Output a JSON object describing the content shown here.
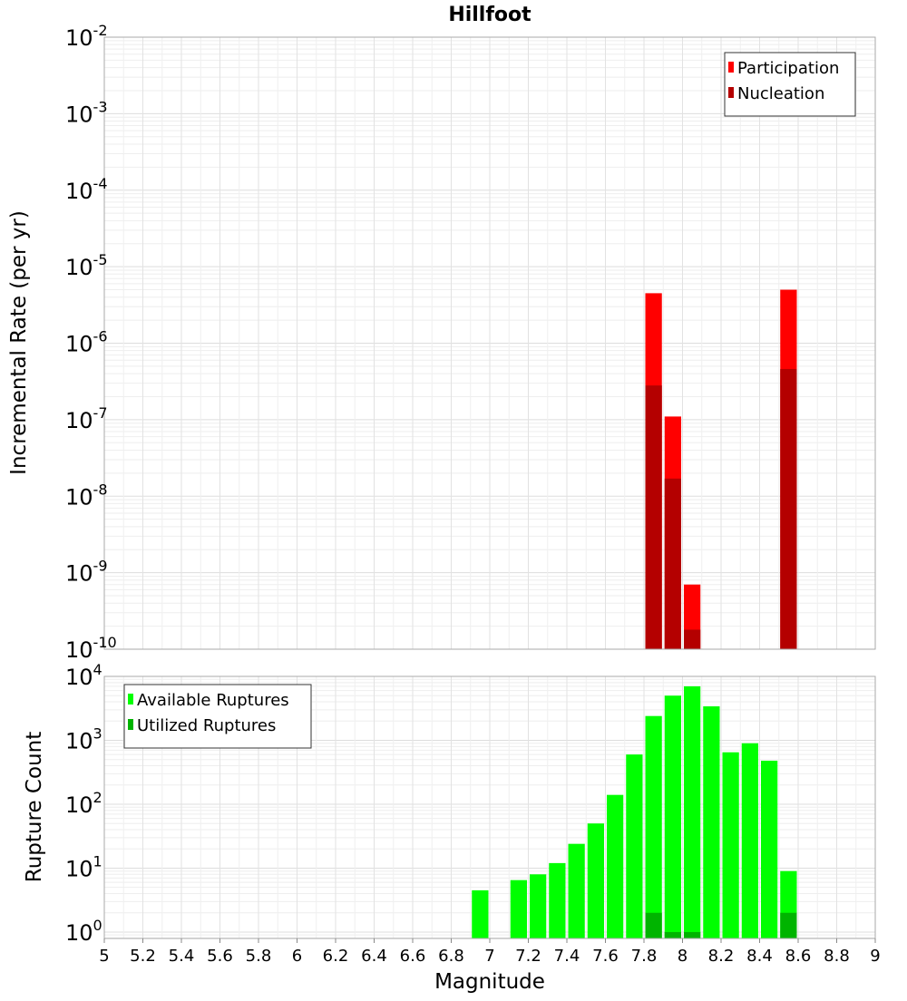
{
  "chart_data": [
    {
      "id": "rates",
      "type": "bar",
      "title": "Hillfoot",
      "xlabel": "",
      "ylabel": "Incremental Rate (per yr)",
      "yscale": "log",
      "ylim_exp": [
        -10,
        -2
      ],
      "xlim": [
        5,
        9
      ],
      "bar_width": 0.1,
      "legend_position": "top-right",
      "series": [
        {
          "name": "Participation",
          "color": "#ff0000",
          "points": [
            {
              "x": 7.85,
              "y": 4.5e-06
            },
            {
              "x": 7.95,
              "y": 1.1e-07
            },
            {
              "x": 8.05,
              "y": 7e-10
            },
            {
              "x": 8.55,
              "y": 5e-06
            }
          ]
        },
        {
          "name": "Nucleation",
          "color": "#b40000",
          "points": [
            {
              "x": 7.85,
              "y": 2.8e-07
            },
            {
              "x": 7.95,
              "y": 1.7e-08
            },
            {
              "x": 8.05,
              "y": 1.8e-10
            },
            {
              "x": 8.55,
              "y": 4.6e-07
            }
          ]
        }
      ]
    },
    {
      "id": "counts",
      "type": "bar",
      "title": "",
      "xlabel": "Magnitude",
      "ylabel": "Rupture Count",
      "yscale": "log",
      "ylim_exp": [
        -0.1,
        4
      ],
      "xlim": [
        5,
        9
      ],
      "bar_width": 0.1,
      "legend_position": "top-left",
      "series": [
        {
          "name": "Available Ruptures",
          "color": "#00ff00",
          "points": [
            {
              "x": 6.95,
              "y": 4.5
            },
            {
              "x": 7.15,
              "y": 6.5
            },
            {
              "x": 7.25,
              "y": 8
            },
            {
              "x": 7.35,
              "y": 12
            },
            {
              "x": 7.45,
              "y": 24
            },
            {
              "x": 7.55,
              "y": 50
            },
            {
              "x": 7.65,
              "y": 140
            },
            {
              "x": 7.75,
              "y": 600
            },
            {
              "x": 7.85,
              "y": 2400
            },
            {
              "x": 7.95,
              "y": 5000
            },
            {
              "x": 8.05,
              "y": 7000
            },
            {
              "x": 8.15,
              "y": 3400
            },
            {
              "x": 8.25,
              "y": 650
            },
            {
              "x": 8.35,
              "y": 900
            },
            {
              "x": 8.45,
              "y": 480
            },
            {
              "x": 8.55,
              "y": 9
            }
          ]
        },
        {
          "name": "Utilized Ruptures",
          "color": "#00b400",
          "points": [
            {
              "x": 7.85,
              "y": 2
            },
            {
              "x": 7.95,
              "y": 1
            },
            {
              "x": 8.05,
              "y": 1
            },
            {
              "x": 8.55,
              "y": 2
            }
          ]
        }
      ]
    }
  ],
  "x_ticks": [
    "5",
    "5.2",
    "5.4",
    "5.6",
    "5.8",
    "6",
    "6.2",
    "6.4",
    "6.6",
    "6.8",
    "7",
    "7.2",
    "7.4",
    "7.6",
    "7.8",
    "8",
    "8.2",
    "8.4",
    "8.6",
    "8.8",
    "9"
  ]
}
